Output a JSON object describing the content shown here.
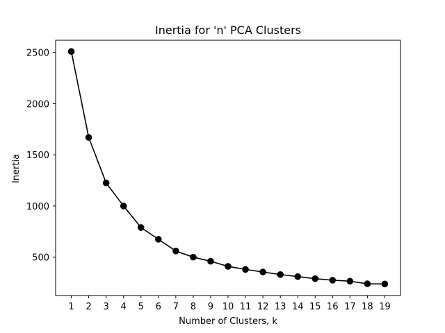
{
  "chart_data": {
    "type": "line",
    "title": "Inertia for 'n' PCA Clusters",
    "xlabel": "Number of Clusters, k",
    "ylabel": "Inertia",
    "x": [
      1,
      2,
      3,
      4,
      5,
      6,
      7,
      8,
      9,
      10,
      11,
      12,
      13,
      14,
      15,
      16,
      17,
      18,
      19
    ],
    "series": [
      {
        "values": [
          2510,
          1670,
          1225,
          1000,
          790,
          675,
          560,
          500,
          460,
          410,
          380,
          355,
          330,
          310,
          290,
          275,
          265,
          240,
          238
        ],
        "color": "#000000",
        "marker": "circle"
      }
    ],
    "xticks": [
      1,
      2,
      3,
      4,
      5,
      6,
      7,
      8,
      9,
      10,
      11,
      12,
      13,
      14,
      15,
      16,
      17,
      18,
      19
    ],
    "yticks": [
      500,
      1000,
      1500,
      2000,
      2500
    ],
    "xlim": [
      0.1,
      19.9
    ],
    "ylim": [
      125,
      2620
    ],
    "grid": false,
    "legend": "none"
  }
}
